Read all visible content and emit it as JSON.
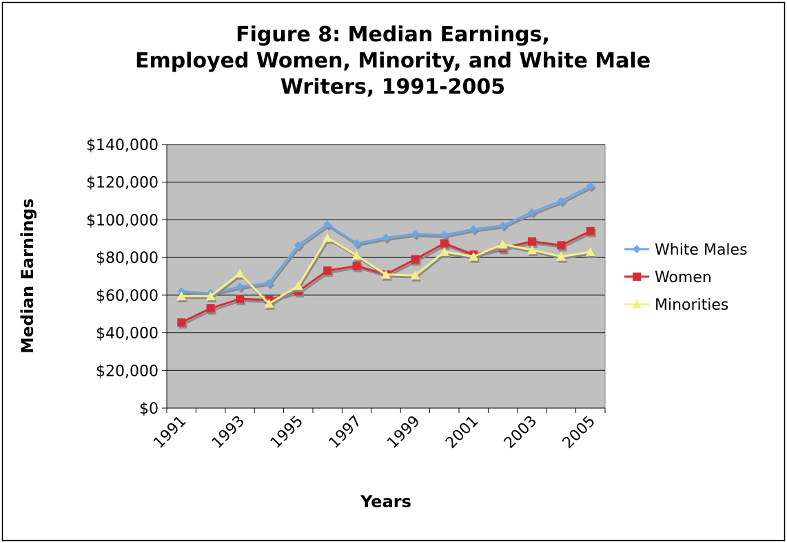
{
  "chart_data": {
    "type": "line",
    "title": [
      "Figure 8:  Median Earnings,",
      "Employed Women, Minority, and White Male",
      "Writers, 1991-2005"
    ],
    "x_label": "Years",
    "y_label": "Median Earnings",
    "categories": [
      "1991",
      null,
      "1993",
      null,
      "1995",
      null,
      "1997",
      null,
      "1999",
      null,
      "2001",
      null,
      "2003",
      null,
      "2005"
    ],
    "series": [
      {
        "name": "White Males",
        "color": "#6aa6e8",
        "marker": "diamond",
        "values": [
          62000,
          61000,
          64500,
          66500,
          86500,
          97500,
          87500,
          90500,
          92500,
          92000,
          95000,
          97000,
          104000,
          110000,
          118000
        ]
      },
      {
        "name": "Women",
        "color": "#d62d35",
        "marker": "square",
        "values": [
          45500,
          53000,
          58000,
          57500,
          62000,
          73000,
          75500,
          71000,
          79000,
          87500,
          81500,
          85000,
          88500,
          86500,
          94000
        ]
      },
      {
        "name": "Minorities",
        "color": "#f3ef8a",
        "marker": "triangle",
        "values": [
          59500,
          59500,
          71500,
          55500,
          65000,
          90500,
          81000,
          71000,
          70500,
          83000,
          80500,
          87000,
          84000,
          80500,
          83000
        ]
      }
    ],
    "ylim": [
      0,
      140000
    ],
    "yticks": [
      {
        "value": 0,
        "label": "$0"
      },
      {
        "value": 20000,
        "label": "$20,000"
      },
      {
        "value": 40000,
        "label": "$40,000"
      },
      {
        "value": 60000,
        "label": "$60,000"
      },
      {
        "value": 80000,
        "label": "$80,000"
      },
      {
        "value": 100000,
        "label": "$100,000"
      },
      {
        "value": 120000,
        "label": "$120,000"
      },
      {
        "value": 140000,
        "label": "$140,000"
      }
    ],
    "grid": true,
    "legend": "right",
    "plot_background": "#c0c0c0"
  }
}
